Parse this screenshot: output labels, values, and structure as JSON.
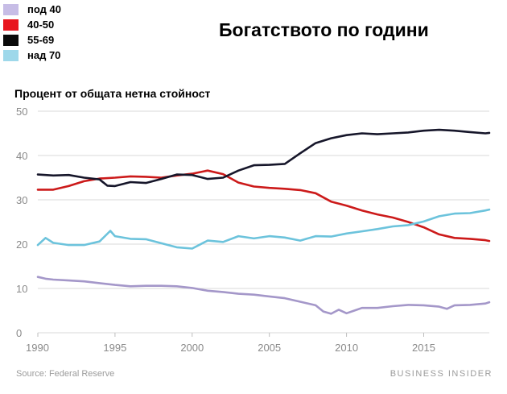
{
  "header": {
    "title": "Богатството по години"
  },
  "source": "Source: Federal Reserve",
  "brand": "BUSINESS INSIDER",
  "chart_data": {
    "type": "line",
    "ylabel": "Процент от общата нетна стойност",
    "xlim": [
      1990,
      2019.25
    ],
    "ylim": [
      0,
      50
    ],
    "x_ticks": [
      1990,
      1995,
      2000,
      2005,
      2010,
      2015
    ],
    "y_ticks": [
      0,
      10,
      20,
      30,
      40,
      50
    ],
    "grid": "horizontal",
    "legend_position": "top-left",
    "series": [
      {
        "name": "под 40",
        "color": "#a497c9",
        "x": [
          1990,
          1990.5,
          1991,
          1992,
          1993,
          1994,
          1995,
          1996,
          1997,
          1998,
          1999,
          2000,
          2001,
          2002,
          2003,
          2004,
          2005,
          2006,
          2007,
          2008,
          2008.5,
          2009,
          2009.5,
          2010,
          2010.5,
          2011,
          2012,
          2013,
          2014,
          2015,
          2016,
          2016.5,
          2017,
          2018,
          2019,
          2019.25
        ],
        "y": [
          12.6,
          12.2,
          12.0,
          11.8,
          11.6,
          11.2,
          10.8,
          10.5,
          10.6,
          10.6,
          10.5,
          10.1,
          9.5,
          9.2,
          8.8,
          8.6,
          8.2,
          7.8,
          7.0,
          6.2,
          4.8,
          4.3,
          5.2,
          4.4,
          5.0,
          5.6,
          5.6,
          6.0,
          6.3,
          6.2,
          5.9,
          5.4,
          6.2,
          6.3,
          6.6,
          6.9
        ]
      },
      {
        "name": "40-50",
        "color": "#cc1a1a",
        "x": [
          1990,
          1991,
          1992,
          1993,
          1994,
          1995,
          1996,
          1997,
          1998,
          1999,
          2000,
          2001,
          2002,
          2003,
          2004,
          2005,
          2006,
          2007,
          2008,
          2009,
          2010,
          2011,
          2012,
          2013,
          2014,
          2015,
          2016,
          2017,
          2018,
          2019,
          2019.25
        ],
        "y": [
          32.3,
          32.3,
          33.1,
          34.2,
          34.8,
          35.0,
          35.3,
          35.2,
          35.0,
          35.5,
          35.9,
          36.6,
          35.8,
          33.9,
          33.0,
          32.7,
          32.5,
          32.2,
          31.5,
          29.6,
          28.7,
          27.6,
          26.7,
          26.0,
          25.0,
          23.8,
          22.2,
          21.4,
          21.2,
          20.9,
          20.7
        ]
      },
      {
        "name": "55-69",
        "color": "#16162a",
        "x": [
          1990,
          1991,
          1992,
          1993,
          1994,
          1994.5,
          1995,
          1996,
          1997,
          1998,
          1999,
          2000,
          2001,
          2002,
          2003,
          2004,
          2005,
          2006,
          2007,
          2008,
          2009,
          2010,
          2011,
          2012,
          2013,
          2014,
          2015,
          2016,
          2017,
          2018,
          2019,
          2019.25
        ],
        "y": [
          35.7,
          35.5,
          35.6,
          35.0,
          34.6,
          33.2,
          33.1,
          34.0,
          33.8,
          34.7,
          35.7,
          35.6,
          34.7,
          35.0,
          36.6,
          37.8,
          37.9,
          38.1,
          40.5,
          42.8,
          43.9,
          44.6,
          45.0,
          44.8,
          45.0,
          45.2,
          45.6,
          45.8,
          45.6,
          45.3,
          45.0,
          45.1
        ]
      },
      {
        "name": "над 70",
        "color": "#6cc3dc",
        "x": [
          1990,
          1990.5,
          1991,
          1992,
          1993,
          1994,
          1994.7,
          1995,
          1996,
          1997,
          1998,
          1999,
          2000,
          2001,
          2002,
          2003,
          2004,
          2005,
          2006,
          2007,
          2008,
          2009,
          2010,
          2011,
          2012,
          2013,
          2014,
          2015,
          2016,
          2017,
          2018,
          2019,
          2019.25
        ],
        "y": [
          19.8,
          21.4,
          20.3,
          19.8,
          19.8,
          20.6,
          23.0,
          21.8,
          21.2,
          21.1,
          20.2,
          19.3,
          19.0,
          20.8,
          20.5,
          21.8,
          21.3,
          21.8,
          21.5,
          20.8,
          21.8,
          21.7,
          22.4,
          22.9,
          23.4,
          24.0,
          24.3,
          25.1,
          26.3,
          26.9,
          27.0,
          27.6,
          27.8
        ]
      }
    ]
  }
}
